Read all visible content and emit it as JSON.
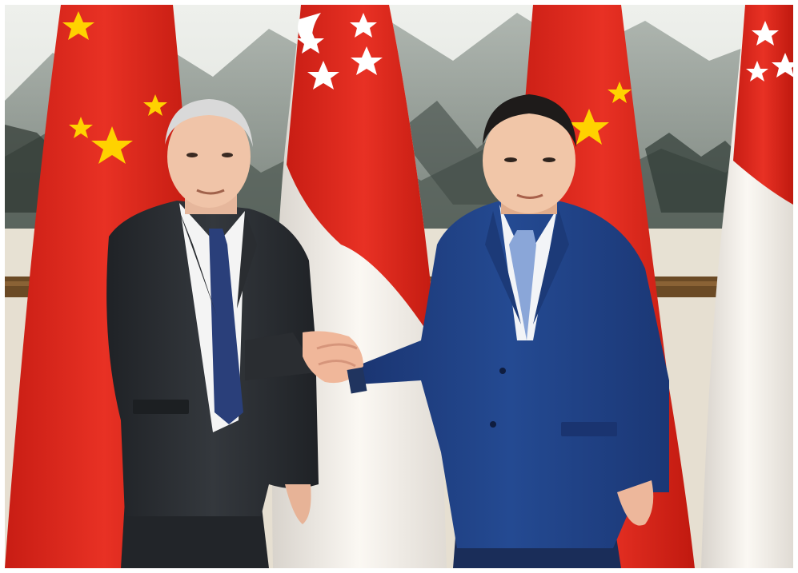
{
  "photo": {
    "scene": "meeting-handshake",
    "colors": {
      "flag_red": "#e42a1e",
      "flag_white": "#f7f4ef",
      "star_yellow": "#ffd200",
      "suit_dark": "#2a2d31",
      "suit_navy": "#1f3f82",
      "tie_dark": "#2a3f7a",
      "tie_light": "#8aa6d8",
      "paint_mountain": "#7f8a84",
      "paint_sky": "#e9ebe7",
      "wall_beige": "#e8e1d2",
      "rail_brown": "#6b4a25"
    }
  }
}
